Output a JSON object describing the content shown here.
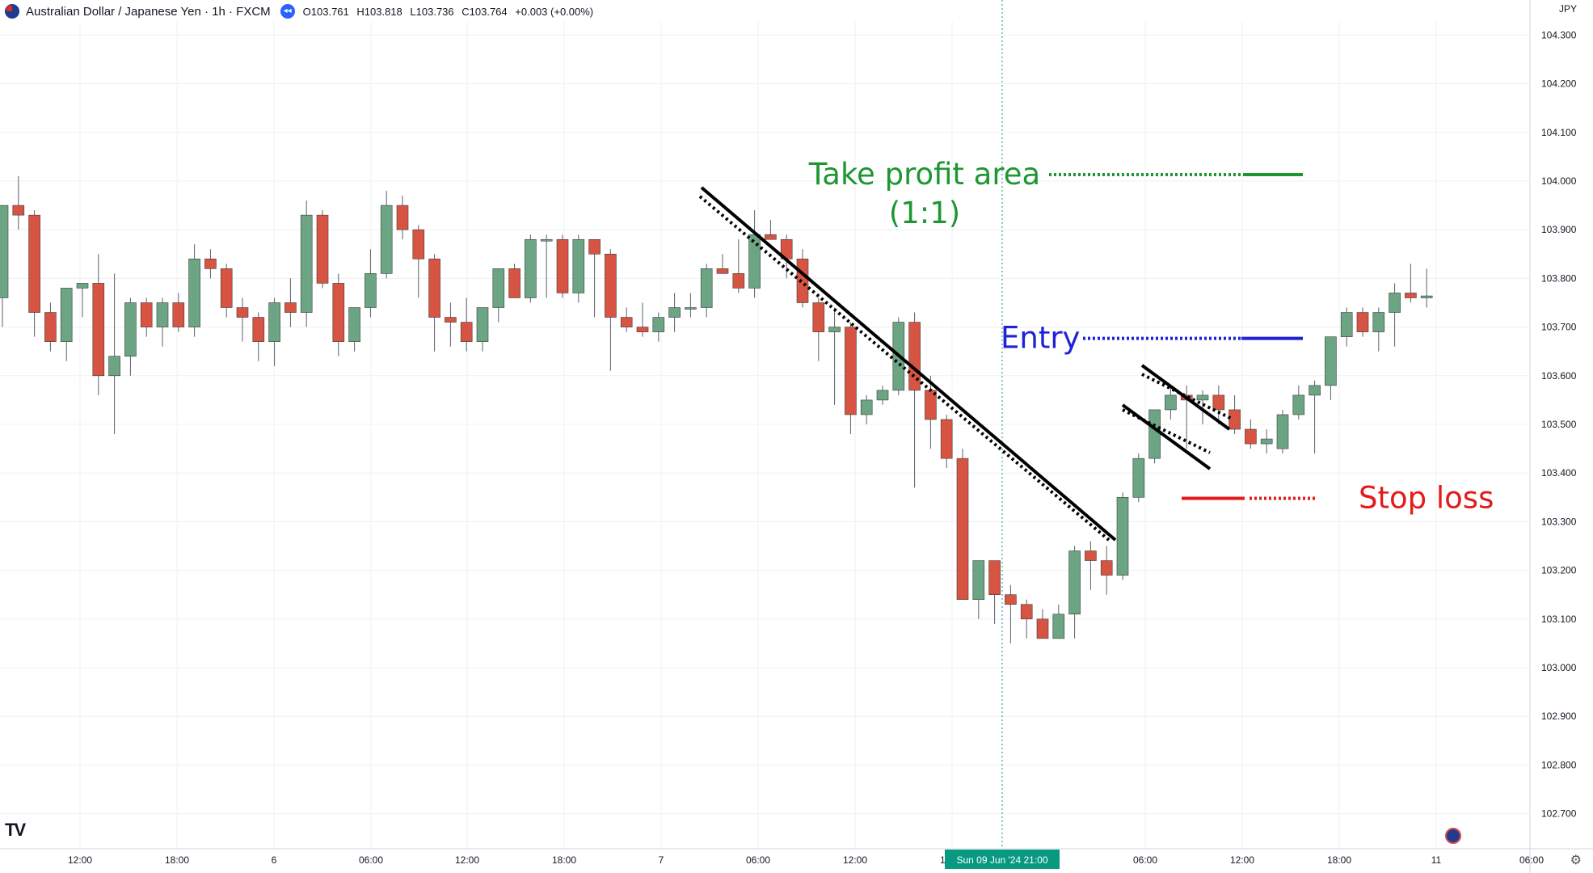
{
  "header": {
    "symbol": "Australian Dollar / Japanese Yen · 1h · FXCM",
    "open": "O103.761",
    "high": "H103.818",
    "low": "L103.736",
    "close": "C103.764",
    "change": "+0.003 (+0.00%)",
    "currency": "JPY"
  },
  "colors": {
    "up": "#6ba583",
    "down": "#d75442",
    "grid": "#eef0f4",
    "crosshair": "#089981",
    "take_profit": "#1e9632",
    "entry": "#1f22d6",
    "stop_loss": "#e31b1b"
  },
  "chart_data": {
    "type": "candlestick",
    "title": "",
    "xlabel": "",
    "ylabel": "",
    "ylim": [
      102.65,
      104.35
    ],
    "y_ticks": [
      "104.300",
      "104.200",
      "104.100",
      "104.000",
      "103.900",
      "103.800",
      "103.700",
      "103.600",
      "103.500",
      "103.400",
      "103.300",
      "103.200",
      "103.100",
      "103.000",
      "102.900",
      "102.800",
      "102.700"
    ],
    "x_ticks": [
      "12:00",
      "18:00",
      "6",
      "06:00",
      "12:00",
      "18:00",
      "7",
      "06:00",
      "12:00",
      "18:00",
      "06:00",
      "12:00",
      "18:00",
      "11",
      "06:00"
    ],
    "crosshair_label": "Sun 09 Jun '24  21:00",
    "grid": true,
    "candles": [
      [
        103.76,
        103.95,
        103.7,
        103.95
      ],
      [
        103.95,
        104.01,
        103.9,
        103.93
      ],
      [
        103.93,
        103.94,
        103.68,
        103.73
      ],
      [
        103.73,
        103.75,
        103.65,
        103.67
      ],
      [
        103.67,
        103.78,
        103.63,
        103.78
      ],
      [
        103.78,
        103.79,
        103.72,
        103.79
      ],
      [
        103.79,
        103.85,
        103.56,
        103.6
      ],
      [
        103.6,
        103.81,
        103.48,
        103.64
      ],
      [
        103.64,
        103.76,
        103.6,
        103.75
      ],
      [
        103.75,
        103.76,
        103.68,
        103.7
      ],
      [
        103.7,
        103.76,
        103.66,
        103.75
      ],
      [
        103.75,
        103.77,
        103.69,
        103.7
      ],
      [
        103.7,
        103.87,
        103.68,
        103.84
      ],
      [
        103.84,
        103.86,
        103.8,
        103.82
      ],
      [
        103.82,
        103.83,
        103.72,
        103.74
      ],
      [
        103.74,
        103.76,
        103.67,
        103.72
      ],
      [
        103.72,
        103.73,
        103.63,
        103.67
      ],
      [
        103.67,
        103.76,
        103.62,
        103.75
      ],
      [
        103.75,
        103.8,
        103.7,
        103.73
      ],
      [
        103.73,
        103.96,
        103.7,
        103.93
      ],
      [
        103.93,
        103.94,
        103.78,
        103.79
      ],
      [
        103.79,
        103.81,
        103.64,
        103.67
      ],
      [
        103.67,
        103.74,
        103.65,
        103.74
      ],
      [
        103.74,
        103.86,
        103.72,
        103.81
      ],
      [
        103.81,
        103.98,
        103.8,
        103.95
      ],
      [
        103.95,
        103.97,
        103.88,
        103.9
      ],
      [
        103.9,
        103.91,
        103.76,
        103.84
      ],
      [
        103.84,
        103.85,
        103.65,
        103.72
      ],
      [
        103.72,
        103.75,
        103.66,
        103.71
      ],
      [
        103.71,
        103.76,
        103.65,
        103.67
      ],
      [
        103.67,
        103.74,
        103.65,
        103.74
      ],
      [
        103.74,
        103.82,
        103.71,
        103.82
      ],
      [
        103.82,
        103.83,
        103.76,
        103.76
      ],
      [
        103.76,
        103.89,
        103.75,
        103.88
      ],
      [
        103.88,
        103.89,
        103.76,
        103.88
      ],
      [
        103.88,
        103.89,
        103.76,
        103.77
      ],
      [
        103.77,
        103.89,
        103.75,
        103.88
      ],
      [
        103.88,
        103.88,
        103.72,
        103.85
      ],
      [
        103.85,
        103.86,
        103.61,
        103.72
      ],
      [
        103.72,
        103.74,
        103.69,
        103.7
      ],
      [
        103.7,
        103.75,
        103.68,
        103.69
      ],
      [
        103.69,
        103.73,
        103.67,
        103.72
      ],
      [
        103.72,
        103.77,
        103.69,
        103.74
      ],
      [
        103.74,
        103.77,
        103.72,
        103.74
      ],
      [
        103.74,
        103.83,
        103.72,
        103.82
      ],
      [
        103.82,
        103.85,
        103.81,
        103.81
      ],
      [
        103.81,
        103.88,
        103.77,
        103.78
      ],
      [
        103.78,
        103.94,
        103.76,
        103.89
      ],
      [
        103.89,
        103.92,
        103.88,
        103.88
      ],
      [
        103.88,
        103.89,
        103.8,
        103.84
      ],
      [
        103.84,
        103.86,
        103.74,
        103.75
      ],
      [
        103.75,
        103.76,
        103.63,
        103.69
      ],
      [
        103.69,
        103.74,
        103.54,
        103.7
      ],
      [
        103.7,
        103.71,
        103.48,
        103.52
      ],
      [
        103.52,
        103.56,
        103.5,
        103.55
      ],
      [
        103.55,
        103.58,
        103.54,
        103.57
      ],
      [
        103.57,
        103.72,
        103.56,
        103.71
      ],
      [
        103.71,
        103.73,
        103.37,
        103.57
      ],
      [
        103.57,
        103.6,
        103.45,
        103.51
      ],
      [
        103.51,
        103.52,
        103.41,
        103.43
      ],
      [
        103.43,
        103.45,
        103.14,
        103.14
      ],
      [
        103.14,
        103.22,
        103.1,
        103.22
      ],
      [
        103.22,
        103.22,
        103.09,
        103.15
      ],
      [
        103.15,
        103.17,
        103.05,
        103.13
      ],
      [
        103.13,
        103.14,
        103.06,
        103.1
      ],
      [
        103.1,
        103.12,
        103.07,
        103.06
      ],
      [
        103.06,
        103.13,
        103.06,
        103.11
      ],
      [
        103.11,
        103.25,
        103.06,
        103.24
      ],
      [
        103.24,
        103.26,
        103.16,
        103.22
      ],
      [
        103.22,
        103.25,
        103.15,
        103.19
      ],
      [
        103.19,
        103.36,
        103.18,
        103.35
      ],
      [
        103.35,
        103.44,
        103.34,
        103.43
      ],
      [
        103.43,
        103.53,
        103.42,
        103.53
      ],
      [
        103.53,
        103.58,
        103.51,
        103.56
      ],
      [
        103.56,
        103.58,
        103.45,
        103.55
      ],
      [
        103.55,
        103.57,
        103.5,
        103.56
      ],
      [
        103.56,
        103.58,
        103.5,
        103.53
      ],
      [
        103.53,
        103.56,
        103.48,
        103.49
      ],
      [
        103.49,
        103.51,
        103.45,
        103.46
      ],
      [
        103.46,
        103.49,
        103.44,
        103.47
      ],
      [
        103.45,
        103.53,
        103.44,
        103.52
      ],
      [
        103.52,
        103.58,
        103.51,
        103.56
      ],
      [
        103.56,
        103.59,
        103.44,
        103.58
      ],
      [
        103.58,
        103.68,
        103.55,
        103.68
      ],
      [
        103.68,
        103.74,
        103.66,
        103.73
      ],
      [
        103.73,
        103.74,
        103.68,
        103.69
      ],
      [
        103.69,
        103.74,
        103.65,
        103.73
      ],
      [
        103.73,
        103.79,
        103.66,
        103.77
      ],
      [
        103.77,
        103.83,
        103.75,
        103.76
      ],
      [
        103.76,
        103.82,
        103.74,
        103.764
      ]
    ],
    "annotations": {
      "take_profit_label": "Take profit area",
      "take_profit_ratio": "(1:1)",
      "take_profit_level": 104.005,
      "entry_label": "Entry",
      "entry_level": 103.685,
      "stop_loss_label": "Stop loss",
      "stop_loss_level": 103.348
    }
  }
}
